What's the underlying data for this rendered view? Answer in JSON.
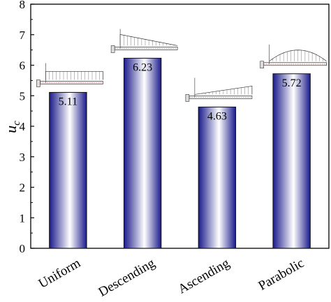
{
  "chart_data": {
    "type": "bar",
    "categories": [
      "Uniform",
      "Descending",
      "Ascending",
      "Parabolic"
    ],
    "values": [
      5.11,
      6.23,
      4.63,
      5.72
    ],
    "value_labels": [
      "5.11",
      "6.23",
      "4.63",
      "5.72"
    ],
    "ylabel": "u",
    "ylabel_subscript": "c",
    "ylim": [
      0,
      8
    ],
    "yticks": [
      "0",
      "1",
      "2",
      "3",
      "4",
      "5",
      "6",
      "7",
      "8"
    ],
    "grid": false,
    "bar_gradient": [
      "#1a1a8c",
      "#ffffff"
    ],
    "load_profiles": [
      "uniform",
      "descending",
      "ascending",
      "parabolic"
    ]
  }
}
